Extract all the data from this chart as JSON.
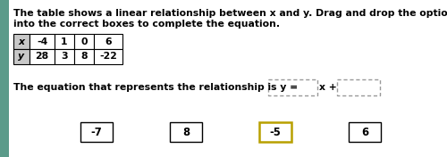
{
  "bg_color": "#ffffff",
  "left_stripe_color": "#5b9b8a",
  "title_line1": "The table shows a linear relationship between x and y. Drag and drop the options provided",
  "title_line2": "into the correct boxes to complete the equation.",
  "table_x_labels": [
    "x",
    "-4",
    "1",
    "0",
    "6"
  ],
  "table_y_labels": [
    "y",
    "28",
    "3",
    "8",
    "-22"
  ],
  "table_header_bg": "#d0d0d0",
  "equation_prefix": "The equation that represents the relationship is y =",
  "answer_options": [
    "-7",
    "8",
    "-5",
    "6"
  ],
  "highlighted_option_index": 2,
  "highlight_color": "#c8b400",
  "dashed_box_color": "#999999",
  "font_size": 7.8,
  "title_font_size": 7.8
}
